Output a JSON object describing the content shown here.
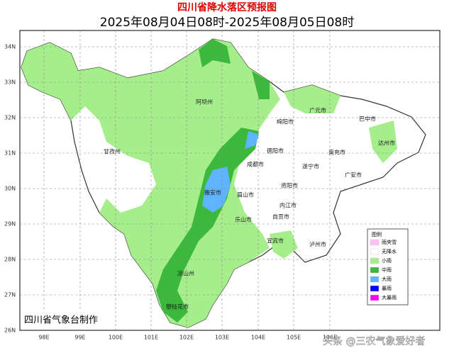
{
  "header": {
    "title": "四川省降水落区预报图",
    "subtitle": "2025年08月04日08时-2025年08月05日08时"
  },
  "map": {
    "lat_labels": [
      "34N",
      "33N",
      "32N",
      "31N",
      "30N",
      "29N",
      "28N",
      "27N",
      "26N"
    ],
    "lon_labels": [
      "98E",
      "99E",
      "100E",
      "101E",
      "102E",
      "103E",
      "104E",
      "105E",
      "106E"
    ],
    "places": [
      "阿坝州",
      "甘孜州",
      "绵阳市",
      "广元市",
      "巴中市",
      "达州市",
      "德阳市",
      "成都市",
      "遂宁市",
      "南充市",
      "广安市",
      "资阳市",
      "雅安市",
      "眉山市",
      "乐山市",
      "内江市",
      "自贡市",
      "宜宾市",
      "泸州市",
      "凉山州",
      "攀枝花市"
    ]
  },
  "legend": {
    "title": "图例",
    "items": [
      {
        "label": "雨夹雪",
        "color": "#ffc0f0"
      },
      {
        "label": "无降水",
        "color": "#ffffff"
      },
      {
        "label": "小雨",
        "color": "#a6ee8c"
      },
      {
        "label": "中雨",
        "color": "#3cb93c"
      },
      {
        "label": "大雨",
        "color": "#5fb4ff"
      },
      {
        "label": "暴雨",
        "color": "#0000ff"
      },
      {
        "label": "大暴雨",
        "color": "#ff00ff"
      }
    ]
  },
  "footer": {
    "credit": "四川省气象台制作",
    "watermark": "头条 @三农气象爱好者"
  }
}
